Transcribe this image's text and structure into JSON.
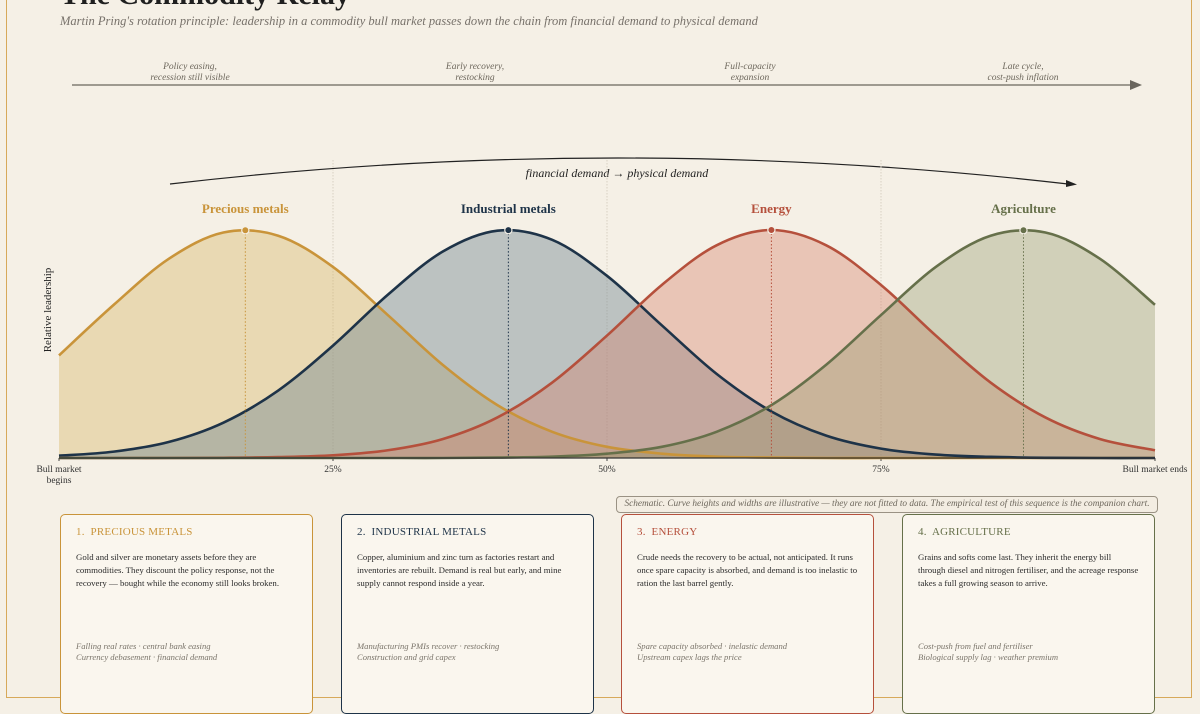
{
  "chart_data": {
    "type": "line",
    "title": "The Commodity Relay",
    "subtitle": "Martin Pring's rotation principle: leadership in a commodity bull market passes down the chain from financial demand to physical demand",
    "stages": [
      [
        "Policy easing,",
        "recession still visible"
      ],
      [
        "Early recovery,",
        "restocking"
      ],
      [
        "Full-capacity",
        "expansion"
      ],
      [
        "Late cycle,",
        "cost-push inflation"
      ]
    ],
    "arrow_label": "financial demand → physical demand",
    "ylabel": "Relative leadership",
    "x": [
      0,
      5,
      10,
      15,
      20,
      25,
      30,
      35,
      40,
      45,
      50,
      55,
      60,
      65,
      70,
      75,
      80,
      85,
      90,
      95,
      100
    ],
    "xlim": [
      0,
      100
    ],
    "ylim": [
      0,
      100
    ],
    "xticks": [
      {
        "value": 0,
        "label": "Bull market begins"
      },
      {
        "value": 25,
        "label": "25%"
      },
      {
        "value": 50,
        "label": "50%"
      },
      {
        "value": 75,
        "label": "75%"
      },
      {
        "value": 100,
        "label": "Bull market ends"
      }
    ],
    "grid": true,
    "series": [
      {
        "name": "Precious metals",
        "color": "#c9943a",
        "fill": "rgba(214,178,98,0.38)",
        "peak_x": 17,
        "values": [
          45.0,
          67.2,
          87.3,
          98.9,
          97.5,
          83.8,
          62.7,
          40.9,
          23.2,
          11.5,
          4.9,
          1.9,
          0.6,
          0.2,
          0,
          0,
          0,
          0,
          0,
          0,
          0
        ]
      },
      {
        "name": "Industrial metals",
        "color": "#1e3348",
        "fill": "rgba(110,132,142,0.42)",
        "peak_x": 41,
        "values": [
          1.0,
          2.8,
          7.0,
          15.5,
          29.6,
          49.3,
          71.6,
          90.5,
          99.7,
          95.7,
          79.9,
          58.2,
          36.9,
          20.4,
          9.8,
          4.1,
          1.5,
          0.5,
          0.1,
          0,
          0
        ]
      },
      {
        "name": "Energy",
        "color": "#b5503c",
        "fill": "rgba(214,125,105,0.38)",
        "peak_x": 65,
        "values": [
          0,
          0,
          0,
          0.1,
          0.4,
          1.2,
          3.4,
          8.3,
          17.8,
          33.1,
          53.7,
          75.9,
          93.3,
          100,
          93.3,
          75.9,
          53.7,
          33.1,
          17.8,
          8.3,
          3.4
        ]
      },
      {
        "name": "Agriculture",
        "color": "#66704a",
        "fill": "rgba(140,146,100,0.34)",
        "peak_x": 88,
        "values": [
          0,
          0,
          0,
          0,
          0,
          0,
          0,
          0,
          0.2,
          0.6,
          1.9,
          4.9,
          11.5,
          23.2,
          40.9,
          62.7,
          83.8,
          97.5,
          98.9,
          87.3,
          67.2
        ]
      }
    ],
    "note": "Schematic. Curve heights and widths are illustrative — they are not fitted to data. The empirical test of this sequence is the companion chart."
  },
  "cards": [
    {
      "heading": "1.  PRECIOUS METALS",
      "color": "#c9943a",
      "body": "Gold and silver are monetary assets before they are commodities. They discount the policy response, not the recovery — bought while the economy still looks broken.",
      "footer": [
        "Falling real rates · central bank easing",
        "Currency debasement · financial demand"
      ]
    },
    {
      "heading": "2.  INDUSTRIAL METALS",
      "color": "#1e3348",
      "body": "Copper, aluminium and zinc turn as factories restart and inventories are rebuilt. Demand is real but early, and mine supply cannot respond inside a year.",
      "footer": [
        "Manufacturing PMIs recover · restocking",
        "Construction and grid capex"
      ]
    },
    {
      "heading": "3.  ENERGY",
      "color": "#b5503c",
      "body": "Crude needs the recovery to be actual, not anticipated. It runs once spare capacity is absorbed, and demand is too inelastic to ration the last barrel gently.",
      "footer": [
        "Spare capacity absorbed · inelastic demand",
        "Upstream capex lags the price"
      ]
    },
    {
      "heading": "4.  AGRICULTURE",
      "color": "#66704a",
      "body": "Grains and softs come last. They inherit the energy bill through diesel and nitrogen fertiliser, and the acreage response takes a full growing season to arrive.",
      "footer": [
        "Cost-push from fuel and fertiliser",
        "Biological supply lag · weather premium"
      ]
    }
  ]
}
